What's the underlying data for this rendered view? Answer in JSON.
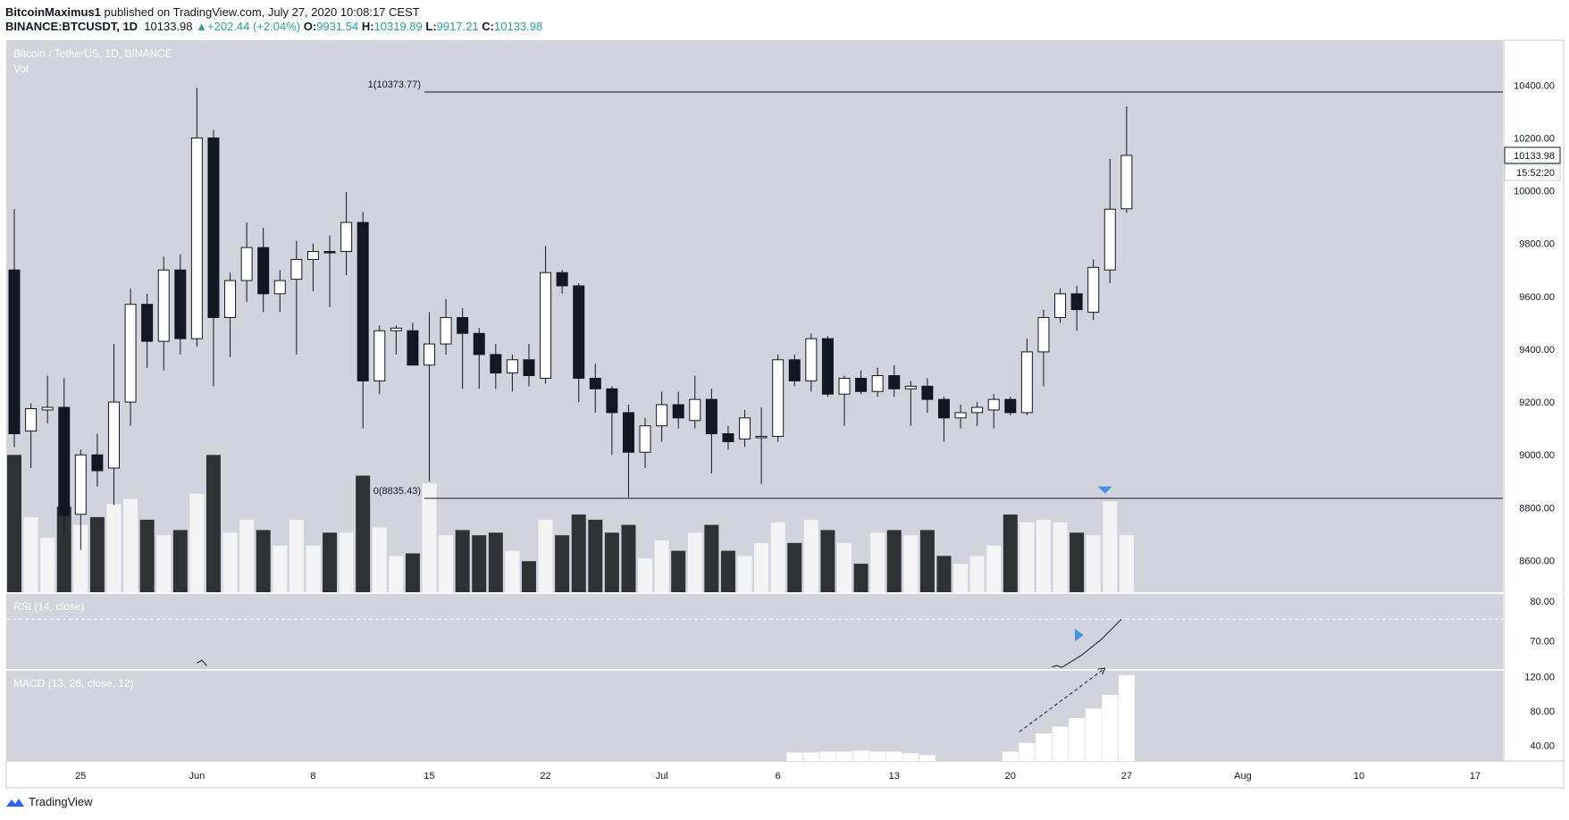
{
  "header": {
    "author": "BitcoinMaximus1",
    "published": "published on TradingView.com, July 27, 2020 10:08:17 CEST",
    "symbol": "BINANCE:BTCUSDT, 1D",
    "last": "10133.98",
    "change": "+202.44 (+2.04%)",
    "o_label": "O:",
    "o_val": "9931.54",
    "h_label": "H:",
    "h_val": "10319.89",
    "l_label": "L:",
    "l_val": "9917.21",
    "c_label": "C:",
    "c_val": "10133.98"
  },
  "watermark": "TradingView",
  "colors": {
    "pane_bg": "#d1d4dc",
    "axis_bg": "#ffffff",
    "up": "#ffffff",
    "down": "#131722",
    "accent": "#2962ff",
    "arrow": "#4a90e2"
  },
  "chart_data": [
    {
      "type": "candlestick",
      "pane": "price",
      "legend": [
        "Bitcoin / TetherUS, 1D, BINANCE",
        "Vol"
      ],
      "ylim": [
        8480,
        10570
      ],
      "y_ticks": [
        "10400.00",
        "10200.00",
        "10000.00",
        "9800.00",
        "9600.00",
        "9400.00",
        "9200.00",
        "9000.00",
        "8800.00",
        "8600.00"
      ],
      "x_ticks": [
        "25",
        "Jun",
        "8",
        "15",
        "22",
        "Jul",
        "6",
        "13",
        "20",
        "27",
        "Aug",
        "10",
        "17"
      ],
      "price_label": "10133.98",
      "countdown": "15:52:20",
      "levels": [
        {
          "label": "1(10373.77)",
          "value": 10373.77
        },
        {
          "label": "0(8835.43)",
          "value": 8835.43
        }
      ],
      "candles": [
        {
          "o": 9700,
          "h": 9930,
          "l": 9030,
          "c": 9080
        },
        {
          "o": 9090,
          "h": 9195,
          "l": 8950,
          "c": 9175
        },
        {
          "o": 9170,
          "h": 9300,
          "l": 9120,
          "c": 9180
        },
        {
          "o": 9180,
          "h": 9290,
          "l": 8700,
          "c": 8770
        },
        {
          "o": 8775,
          "h": 9020,
          "l": 8640,
          "c": 9000
        },
        {
          "o": 9000,
          "h": 9080,
          "l": 8880,
          "c": 8940
        },
        {
          "o": 8950,
          "h": 9420,
          "l": 8810,
          "c": 9200
        },
        {
          "o": 9200,
          "h": 9630,
          "l": 9110,
          "c": 9570
        },
        {
          "o": 9570,
          "h": 9610,
          "l": 9330,
          "c": 9430
        },
        {
          "o": 9430,
          "h": 9750,
          "l": 9320,
          "c": 9700
        },
        {
          "o": 9700,
          "h": 9760,
          "l": 9380,
          "c": 9440
        },
        {
          "o": 9440,
          "h": 10390,
          "l": 9410,
          "c": 10200
        },
        {
          "o": 10200,
          "h": 10230,
          "l": 9260,
          "c": 9520
        },
        {
          "o": 9520,
          "h": 9690,
          "l": 9370,
          "c": 9660
        },
        {
          "o": 9660,
          "h": 9880,
          "l": 9580,
          "c": 9785
        },
        {
          "o": 9785,
          "h": 9860,
          "l": 9540,
          "c": 9610
        },
        {
          "o": 9610,
          "h": 9700,
          "l": 9540,
          "c": 9660
        },
        {
          "o": 9665,
          "h": 9810,
          "l": 9380,
          "c": 9740
        },
        {
          "o": 9740,
          "h": 9800,
          "l": 9620,
          "c": 9770
        },
        {
          "o": 9770,
          "h": 9830,
          "l": 9560,
          "c": 9765
        },
        {
          "o": 9770,
          "h": 9995,
          "l": 9680,
          "c": 9880
        },
        {
          "o": 9880,
          "h": 9920,
          "l": 9100,
          "c": 9280
        },
        {
          "o": 9280,
          "h": 9490,
          "l": 9230,
          "c": 9470
        },
        {
          "o": 9470,
          "h": 9490,
          "l": 9380,
          "c": 9480
        },
        {
          "o": 9470,
          "h": 9500,
          "l": 9340,
          "c": 9340
        },
        {
          "o": 9340,
          "h": 9540,
          "l": 8900,
          "c": 9420
        },
        {
          "o": 9420,
          "h": 9590,
          "l": 9380,
          "c": 9520
        },
        {
          "o": 9520,
          "h": 9555,
          "l": 9250,
          "c": 9460
        },
        {
          "o": 9460,
          "h": 9480,
          "l": 9250,
          "c": 9380
        },
        {
          "o": 9380,
          "h": 9420,
          "l": 9250,
          "c": 9310
        },
        {
          "o": 9310,
          "h": 9380,
          "l": 9240,
          "c": 9360
        },
        {
          "o": 9360,
          "h": 9420,
          "l": 9260,
          "c": 9300
        },
        {
          "o": 9290,
          "h": 9790,
          "l": 9270,
          "c": 9690
        },
        {
          "o": 9690,
          "h": 9700,
          "l": 9610,
          "c": 9640
        },
        {
          "o": 9640,
          "h": 9650,
          "l": 9200,
          "c": 9290
        },
        {
          "o": 9290,
          "h": 9345,
          "l": 9160,
          "c": 9250
        },
        {
          "o": 9250,
          "h": 9260,
          "l": 9000,
          "c": 9160
        },
        {
          "o": 9160,
          "h": 9190,
          "l": 8840,
          "c": 9010
        },
        {
          "o": 9010,
          "h": 9140,
          "l": 8950,
          "c": 9110
        },
        {
          "o": 9110,
          "h": 9240,
          "l": 9050,
          "c": 9190
        },
        {
          "o": 9190,
          "h": 9240,
          "l": 9100,
          "c": 9140
        },
        {
          "o": 9130,
          "h": 9300,
          "l": 9100,
          "c": 9210
        },
        {
          "o": 9210,
          "h": 9250,
          "l": 8930,
          "c": 9080
        },
        {
          "o": 9080,
          "h": 9110,
          "l": 9020,
          "c": 9050
        },
        {
          "o": 9060,
          "h": 9170,
          "l": 9030,
          "c": 9140
        },
        {
          "o": 9070,
          "h": 9180,
          "l": 8890,
          "c": 9070
        },
        {
          "o": 9070,
          "h": 9380,
          "l": 9050,
          "c": 9360
        },
        {
          "o": 9360,
          "h": 9380,
          "l": 9260,
          "c": 9280
        },
        {
          "o": 9280,
          "h": 9460,
          "l": 9240,
          "c": 9440
        },
        {
          "o": 9440,
          "h": 9450,
          "l": 9220,
          "c": 9230
        },
        {
          "o": 9230,
          "h": 9300,
          "l": 9110,
          "c": 9290
        },
        {
          "o": 9290,
          "h": 9320,
          "l": 9230,
          "c": 9240
        },
        {
          "o": 9240,
          "h": 9330,
          "l": 9220,
          "c": 9300
        },
        {
          "o": 9300,
          "h": 9340,
          "l": 9220,
          "c": 9250
        },
        {
          "o": 9250,
          "h": 9280,
          "l": 9110,
          "c": 9260
        },
        {
          "o": 9260,
          "h": 9290,
          "l": 9160,
          "c": 9210
        },
        {
          "o": 9210,
          "h": 9220,
          "l": 9050,
          "c": 9140
        },
        {
          "o": 9140,
          "h": 9190,
          "l": 9100,
          "c": 9160
        },
        {
          "o": 9160,
          "h": 9200,
          "l": 9110,
          "c": 9180
        },
        {
          "o": 9170,
          "h": 9230,
          "l": 9100,
          "c": 9210
        },
        {
          "o": 9210,
          "h": 9220,
          "l": 9150,
          "c": 9160
        },
        {
          "o": 9160,
          "h": 9440,
          "l": 9150,
          "c": 9390
        },
        {
          "o": 9390,
          "h": 9550,
          "l": 9260,
          "c": 9520
        },
        {
          "o": 9520,
          "h": 9630,
          "l": 9500,
          "c": 9610
        },
        {
          "o": 9610,
          "h": 9640,
          "l": 9470,
          "c": 9550
        },
        {
          "o": 9540,
          "h": 9740,
          "l": 9510,
          "c": 9710
        },
        {
          "o": 9700,
          "h": 10120,
          "l": 9650,
          "c": 9930
        },
        {
          "o": 9931.54,
          "h": 10319.89,
          "l": 9917.21,
          "c": 10133.98
        }
      ],
      "volume": [
        0.53,
        0.29,
        0.21,
        0.33,
        0.26,
        0.29,
        0.34,
        0.36,
        0.28,
        0.22,
        0.24,
        0.38,
        0.53,
        0.23,
        0.28,
        0.24,
        0.18,
        0.28,
        0.18,
        0.23,
        0.23,
        0.45,
        0.25,
        0.14,
        0.15,
        0.42,
        0.22,
        0.24,
        0.22,
        0.23,
        0.16,
        0.12,
        0.28,
        0.22,
        0.3,
        0.28,
        0.23,
        0.26,
        0.13,
        0.2,
        0.16,
        0.23,
        0.26,
        0.16,
        0.14,
        0.19,
        0.27,
        0.19,
        0.28,
        0.24,
        0.19,
        0.11,
        0.23,
        0.24,
        0.22,
        0.24,
        0.14,
        0.11,
        0.14,
        0.18,
        0.3,
        0.27,
        0.28,
        0.27,
        0.23,
        0.22,
        0.35,
        0.22
      ]
    },
    {
      "type": "line",
      "pane": "rsi",
      "legend": "RSI (14, close)",
      "ylim": [
        63,
        82
      ],
      "y_ticks": [
        "80.00",
        "70.00"
      ],
      "level": 75.5,
      "points": [
        [
          11,
          64.5
        ],
        [
          11.3,
          65.2
        ],
        [
          11.6,
          63.8
        ],
        [
          62.5,
          63.5
        ],
        [
          62.8,
          63.9
        ],
        [
          63.1,
          63.4
        ],
        [
          64.3,
          66.5
        ],
        [
          65.5,
          70.5
        ],
        [
          66.7,
          75.5
        ]
      ]
    },
    {
      "type": "bar",
      "pane": "macd",
      "legend": "MACD (13, 26, close, 12)",
      "ylim": [
        22,
        128
      ],
      "y_ticks": [
        "120.00",
        "80.00",
        "40.00"
      ],
      "histogram": [
        [
          47,
          10
        ],
        [
          48,
          10
        ],
        [
          49,
          11
        ],
        [
          50,
          11
        ],
        [
          51,
          12
        ],
        [
          52,
          11
        ],
        [
          53,
          11
        ],
        [
          54,
          9
        ],
        [
          55,
          7
        ],
        [
          60,
          11
        ],
        [
          61,
          21
        ],
        [
          62,
          32
        ],
        [
          63,
          40
        ],
        [
          64,
          50
        ],
        [
          65,
          61
        ],
        [
          66,
          77
        ],
        [
          67,
          100
        ]
      ],
      "trend_arrow": [
        [
          60,
          34
        ],
        [
          65.7,
          108
        ]
      ]
    }
  ]
}
